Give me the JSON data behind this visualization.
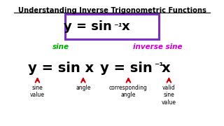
{
  "title": "Understanding Inverse Trigonometric Functions",
  "bg_color": "#ffffff",
  "box_text": "y = sin⁻¹x",
  "box_color": "#7b2fbe",
  "sine_label": "sine",
  "sine_label_color": "#00aa00",
  "inverse_label": "inverse sine",
  "inverse_label_color": "#cc00cc",
  "left_eq": "y = sin x",
  "right_eq": "y = sin⁻¹x",
  "eq_color": "#000000",
  "arrow_color": "#cc0000",
  "annotations_left": [
    "sine\nvalue",
    "angle"
  ],
  "annotations_right": [
    "corresponding\nangle",
    "valid\nsine\nvalue"
  ],
  "ann_color": "#000000"
}
